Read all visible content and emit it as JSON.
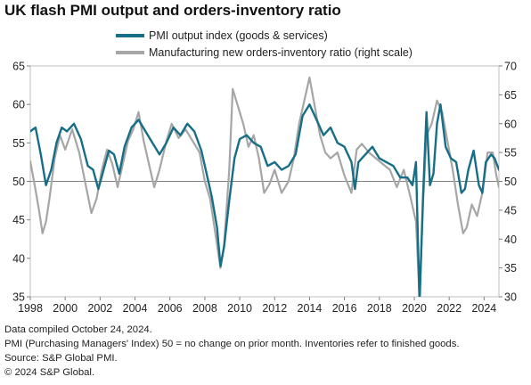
{
  "title": "UK flash PMI output and orders-inventory ratio",
  "footnotes": {
    "compiled": "Data compiled October 24, 2024.",
    "note": "PMI (Purchasing Managers' Index) 50 = no change on prior month. Inventories refer to finished goods.",
    "source": "Source: S&P Global PMI.",
    "copyright": "© 2024 S&P Global."
  },
  "colors": {
    "pmi": "#176e87",
    "ratio": "#a6a6a6",
    "axis": "#7f7f7f",
    "reference": "#7f7f7f"
  },
  "chart_data": {
    "type": "line",
    "title": "UK flash PMI output and orders-inventory ratio",
    "legend_position": "top",
    "grid": false,
    "reference_line": 50,
    "x_ticks": [
      "1998",
      "2000",
      "2002",
      "2004",
      "2006",
      "2008",
      "2010",
      "2012",
      "2014",
      "2016",
      "2018",
      "2020",
      "2022",
      "2024"
    ],
    "xlim": [
      1998.0,
      2024.85
    ],
    "y_left": {
      "ticks": [
        "35",
        "40",
        "45",
        "50",
        "55",
        "60",
        "65"
      ],
      "ylim": [
        35,
        65
      ]
    },
    "y_right": {
      "ticks": [
        "30",
        "35",
        "40",
        "45",
        "50",
        "55",
        "60",
        "65",
        "70"
      ],
      "ylim": [
        30,
        70
      ]
    },
    "series": [
      {
        "name": "PMI output index (goods & services)",
        "axis": "left",
        "x": [
          1998.0,
          1998.3,
          1998.6,
          1998.9,
          1999.2,
          1999.5,
          1999.8,
          2000.1,
          2000.5,
          2000.9,
          2001.3,
          2001.6,
          2001.9,
          2002.2,
          2002.5,
          2002.8,
          2003.1,
          2003.4,
          2003.8,
          2004.2,
          2004.6,
          2005.0,
          2005.4,
          2005.8,
          2006.2,
          2006.6,
          2007.0,
          2007.4,
          2007.8,
          2008.1,
          2008.4,
          2008.7,
          2008.9,
          2009.1,
          2009.4,
          2009.7,
          2010.0,
          2010.4,
          2010.8,
          2011.2,
          2011.6,
          2012.0,
          2012.4,
          2012.8,
          2013.2,
          2013.6,
          2014.0,
          2014.4,
          2014.8,
          2015.2,
          2015.6,
          2016.0,
          2016.4,
          2016.6,
          2016.8,
          2017.2,
          2017.6,
          2018.0,
          2018.4,
          2018.8,
          2019.2,
          2019.6,
          2019.9,
          2020.1,
          2020.3,
          2020.5,
          2020.7,
          2020.9,
          2021.1,
          2021.3,
          2021.5,
          2021.8,
          2022.1,
          2022.4,
          2022.7,
          2022.9,
          2023.1,
          2023.4,
          2023.7,
          2023.9,
          2024.1,
          2024.4,
          2024.6,
          2024.85
        ],
        "values": [
          56.5,
          57.0,
          53.5,
          49.5,
          51.5,
          55.0,
          57.0,
          56.5,
          57.5,
          55.5,
          52.0,
          51.5,
          49.0,
          51.5,
          54.0,
          53.5,
          51.0,
          54.5,
          57.0,
          58.0,
          56.5,
          55.0,
          53.5,
          55.0,
          57.0,
          56.0,
          57.5,
          56.5,
          54.0,
          51.0,
          48.0,
          44.0,
          39.0,
          41.5,
          47.5,
          53.0,
          55.5,
          56.0,
          55.0,
          54.5,
          52.0,
          52.5,
          51.5,
          52.0,
          53.5,
          58.5,
          60.0,
          58.0,
          56.0,
          57.0,
          55.0,
          54.5,
          52.5,
          49.0,
          52.5,
          53.5,
          54.5,
          53.0,
          52.5,
          52.0,
          50.5,
          50.5,
          49.5,
          52.5,
          34.0,
          48.0,
          59.0,
          49.5,
          51.0,
          57.5,
          60.0,
          54.5,
          53.0,
          52.5,
          48.5,
          49.0,
          51.5,
          54.0,
          49.5,
          48.5,
          52.5,
          53.5,
          53.0,
          51.5
        ]
      },
      {
        "name": "Manufacturing new orders-inventory ratio (right scale)",
        "axis": "right",
        "x": [
          1998.0,
          1998.3,
          1998.5,
          1998.7,
          1998.9,
          1999.1,
          1999.4,
          1999.7,
          2000.0,
          2000.4,
          2000.8,
          2001.2,
          2001.5,
          2001.8,
          2002.1,
          2002.4,
          2002.7,
          2003.0,
          2003.3,
          2003.6,
          2003.9,
          2004.2,
          2004.5,
          2004.8,
          2005.1,
          2005.4,
          2005.8,
          2006.1,
          2006.5,
          2006.9,
          2007.3,
          2007.7,
          2008.0,
          2008.3,
          2008.6,
          2008.9,
          2009.1,
          2009.4,
          2009.6,
          2009.9,
          2010.2,
          2010.5,
          2010.8,
          2011.1,
          2011.4,
          2011.7,
          2012.0,
          2012.4,
          2012.8,
          2013.1,
          2013.4,
          2013.7,
          2014.0,
          2014.3,
          2014.6,
          2014.9,
          2015.2,
          2015.6,
          2016.0,
          2016.4,
          2016.7,
          2017.0,
          2017.4,
          2017.8,
          2018.2,
          2018.6,
          2019.0,
          2019.4,
          2019.8,
          2020.1,
          2020.3,
          2020.5,
          2020.7,
          2021.0,
          2021.3,
          2021.6,
          2021.9,
          2022.2,
          2022.5,
          2022.8,
          2023.0,
          2023.3,
          2023.6,
          2023.9,
          2024.2,
          2024.5,
          2024.7,
          2024.85
        ],
        "values": [
          53.5,
          48.5,
          45.0,
          41.0,
          43.0,
          47.0,
          54.0,
          58.0,
          55.5,
          59.0,
          55.0,
          49.0,
          44.5,
          47.0,
          52.0,
          55.5,
          53.0,
          49.0,
          53.0,
          57.0,
          59.0,
          62.0,
          57.0,
          53.0,
          49.0,
          52.0,
          57.0,
          60.0,
          57.5,
          59.0,
          57.0,
          55.0,
          50.0,
          47.0,
          41.0,
          35.0,
          39.0,
          52.0,
          66.0,
          63.0,
          60.0,
          56.0,
          58.0,
          54.0,
          48.0,
          49.5,
          52.0,
          48.0,
          50.0,
          54.0,
          60.0,
          64.0,
          68.0,
          63.0,
          58.0,
          55.0,
          54.0,
          55.0,
          51.0,
          48.0,
          55.5,
          56.5,
          55.0,
          54.0,
          53.0,
          52.0,
          49.0,
          52.0,
          47.0,
          43.0,
          30.0,
          46.0,
          58.0,
          60.0,
          64.0,
          62.0,
          57.0,
          52.0,
          46.0,
          41.0,
          42.0,
          46.0,
          44.0,
          48.0,
          55.0,
          55.0,
          51.0,
          49.0
        ]
      }
    ]
  }
}
